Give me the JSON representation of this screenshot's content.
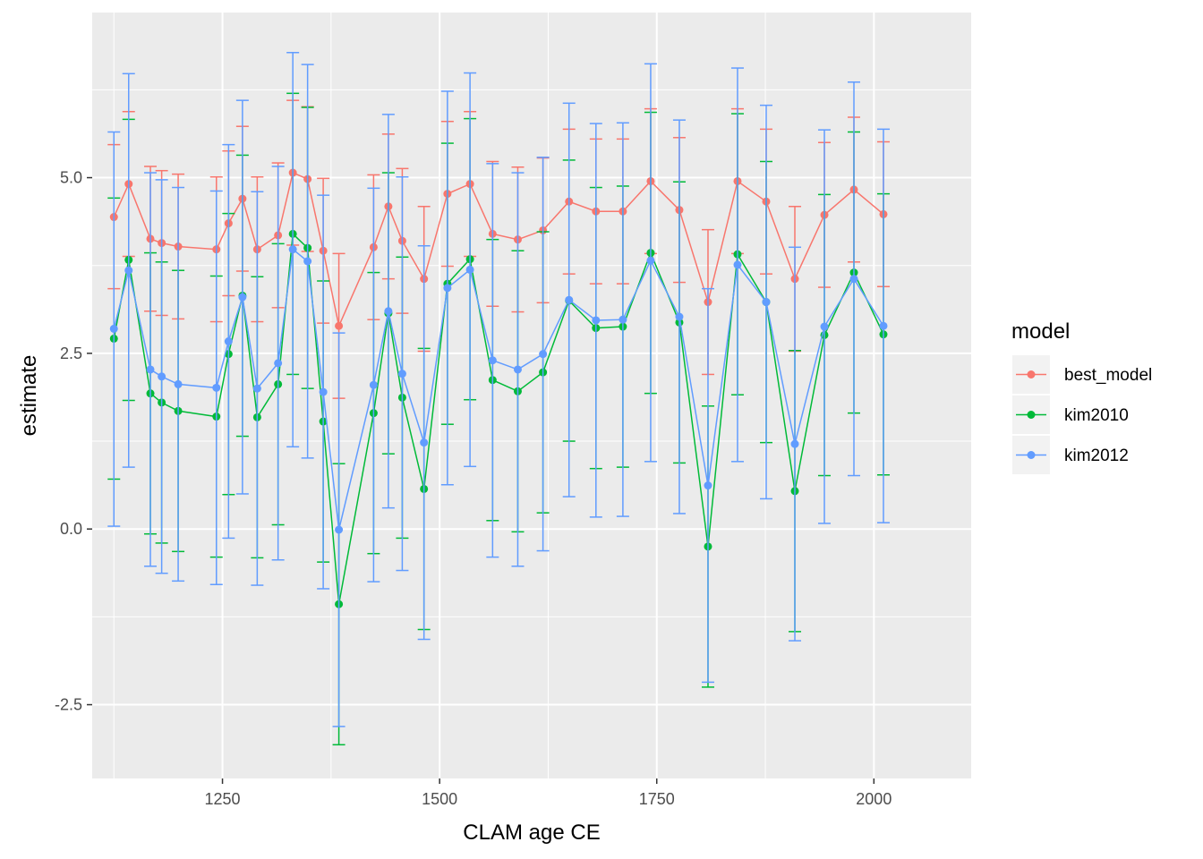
{
  "chart_data": {
    "type": "line",
    "xlabel": "CLAM age CE",
    "ylabel": "estimate",
    "xlim": [
      1100,
      2112
    ],
    "ylim": [
      -3.55,
      7.35
    ],
    "x_ticks": [
      1250,
      1500,
      1750,
      2000
    ],
    "x_tick_labels": [
      "1250",
      "1500",
      "1750",
      "2000"
    ],
    "y_ticks": [
      -2.5,
      0.0,
      2.5,
      5.0
    ],
    "y_tick_labels": [
      "-2.5",
      "0.0",
      "2.5",
      "5.0"
    ],
    "grid": true,
    "legend": {
      "title": "model",
      "position": "right"
    },
    "x": [
      1125,
      1142,
      1167,
      1180,
      1199,
      1243,
      1257,
      1273,
      1290,
      1314,
      1331,
      1348,
      1366,
      1384,
      1424,
      1441,
      1457,
      1482,
      1509,
      1535,
      1561,
      1590,
      1619,
      1649,
      1680,
      1711,
      1743,
      1776,
      1809,
      1843,
      1876,
      1909,
      1943,
      1977,
      2011
    ],
    "series": [
      {
        "name": "best_model",
        "color": "#F8766D",
        "values": [
          4.44,
          4.91,
          4.13,
          4.07,
          4.02,
          3.98,
          4.35,
          4.7,
          3.98,
          4.18,
          5.07,
          4.98,
          3.96,
          2.89,
          4.01,
          4.59,
          4.1,
          3.56,
          4.77,
          4.91,
          4.2,
          4.12,
          4.25,
          4.66,
          4.52,
          4.52,
          4.95,
          4.54,
          3.23,
          4.95,
          4.66,
          3.56,
          4.47,
          4.83,
          4.48
        ],
        "lower": [
          3.42,
          3.88,
          3.1,
          3.04,
          2.99,
          2.95,
          3.32,
          3.67,
          2.95,
          3.15,
          4.04,
          3.95,
          2.93,
          1.86,
          2.98,
          3.56,
          3.07,
          2.53,
          3.74,
          3.88,
          3.17,
          3.09,
          3.22,
          3.63,
          3.49,
          3.49,
          3.92,
          3.51,
          2.2,
          3.92,
          3.63,
          2.53,
          3.44,
          3.8,
          3.45
        ],
        "upper": [
          5.47,
          5.94,
          5.16,
          5.1,
          5.05,
          5.01,
          5.38,
          5.73,
          5.01,
          5.21,
          6.1,
          6.01,
          4.99,
          3.92,
          5.04,
          5.62,
          5.13,
          4.59,
          5.8,
          5.94,
          5.23,
          5.15,
          5.28,
          5.69,
          5.55,
          5.55,
          5.98,
          5.57,
          4.26,
          5.98,
          5.69,
          4.59,
          5.5,
          5.86,
          5.51
        ]
      },
      {
        "name": "kim2010",
        "color": "#00BA38",
        "values": [
          2.71,
          3.83,
          1.93,
          1.8,
          1.68,
          1.6,
          2.49,
          3.32,
          1.59,
          2.06,
          4.2,
          4.0,
          1.53,
          -1.07,
          1.65,
          3.07,
          1.87,
          0.57,
          3.49,
          3.84,
          2.12,
          1.96,
          2.23,
          3.25,
          2.86,
          2.88,
          3.93,
          2.94,
          -0.25,
          3.91,
          3.23,
          0.54,
          2.76,
          3.65,
          2.77
        ],
        "lower": [
          0.71,
          1.83,
          -0.07,
          -0.2,
          -0.32,
          -0.4,
          0.49,
          1.32,
          -0.41,
          0.06,
          2.2,
          2.0,
          -0.47,
          -3.07,
          -0.35,
          1.07,
          -0.13,
          -1.43,
          1.49,
          1.84,
          0.12,
          -0.04,
          0.23,
          1.25,
          0.86,
          0.88,
          1.93,
          0.94,
          -2.25,
          1.91,
          1.23,
          -1.46,
          0.76,
          1.65,
          0.77
        ],
        "upper": [
          4.71,
          5.83,
          3.93,
          3.8,
          3.68,
          3.6,
          4.49,
          5.32,
          3.59,
          4.06,
          6.2,
          6.0,
          3.53,
          0.93,
          3.65,
          5.07,
          3.87,
          2.57,
          5.49,
          5.84,
          4.12,
          3.96,
          4.23,
          5.25,
          4.86,
          4.88,
          5.93,
          4.94,
          1.75,
          5.91,
          5.23,
          2.54,
          4.76,
          5.65,
          4.77
        ]
      },
      {
        "name": "kim2012",
        "color": "#619CFF",
        "values": [
          2.85,
          3.68,
          2.27,
          2.17,
          2.06,
          2.01,
          2.67,
          3.3,
          2.0,
          2.36,
          3.98,
          3.81,
          1.95,
          -0.01,
          2.05,
          3.1,
          2.21,
          1.23,
          3.43,
          3.69,
          2.4,
          2.27,
          2.49,
          3.26,
          2.97,
          2.98,
          3.82,
          3.02,
          0.62,
          3.76,
          3.23,
          1.21,
          2.88,
          3.56,
          2.89
        ],
        "lower": [
          0.04,
          0.88,
          -0.53,
          -0.63,
          -0.74,
          -0.79,
          -0.13,
          0.5,
          -0.8,
          -0.44,
          1.17,
          1.01,
          -0.85,
          -2.81,
          -0.75,
          0.3,
          -0.59,
          -1.57,
          0.63,
          0.89,
          -0.4,
          -0.53,
          -0.31,
          0.46,
          0.17,
          0.18,
          0.96,
          0.22,
          -2.18,
          0.96,
          0.43,
          -1.59,
          0.08,
          0.76,
          0.09
        ],
        "upper": [
          5.65,
          6.48,
          5.07,
          4.97,
          4.86,
          4.81,
          5.47,
          6.1,
          4.8,
          5.16,
          6.78,
          6.61,
          4.75,
          2.79,
          4.85,
          5.9,
          5.01,
          4.03,
          6.23,
          6.49,
          5.2,
          5.07,
          5.29,
          6.06,
          5.77,
          5.78,
          6.62,
          5.82,
          3.42,
          6.56,
          6.03,
          4.01,
          5.68,
          6.36,
          5.69
        ]
      }
    ]
  }
}
